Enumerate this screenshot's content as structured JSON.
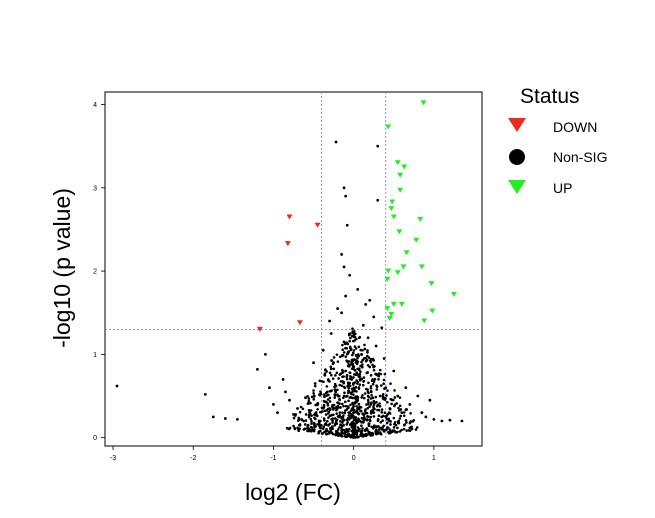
{
  "chart_data": {
    "type": "scatter",
    "xlabel": "log2 (FC)",
    "ylabel": "-log10 (p value)",
    "xlim": [
      -3.1,
      1.6
    ],
    "ylim": [
      -0.1,
      4.15
    ],
    "x_ticks": [
      -3,
      -2,
      -1,
      0,
      1
    ],
    "y_ticks": [
      0,
      1,
      2,
      3,
      4
    ],
    "grid": false,
    "threshold_lines": {
      "x": [
        -0.4,
        0.4
      ],
      "y": [
        1.3
      ]
    },
    "threshold_line_color": "#7777ee",
    "legend": {
      "title": "Status",
      "placement": "right",
      "entries": [
        {
          "label": "DOWN",
          "color": "#ee2a1c",
          "marker": "triangle-down"
        },
        {
          "label": "Non-SIG",
          "color": "#000000",
          "marker": "circle"
        },
        {
          "label": "UP",
          "color": "#22ee22",
          "marker": "triangle-down"
        }
      ]
    },
    "series": [
      {
        "name": "DOWN",
        "color": "#ee2a1c",
        "marker": "triangle-down",
        "points": [
          [
            -0.8,
            2.65
          ],
          [
            -0.45,
            2.55
          ],
          [
            -0.82,
            2.33
          ],
          [
            -0.67,
            1.38
          ],
          [
            -1.17,
            1.3
          ]
        ]
      },
      {
        "name": "Non-SIG",
        "color": "#000000",
        "marker": "circle",
        "points": [
          [
            -2.95,
            0.62
          ],
          [
            -1.85,
            0.52
          ],
          [
            -1.75,
            0.25
          ],
          [
            -1.6,
            0.23
          ],
          [
            -1.45,
            0.22
          ],
          [
            -1.2,
            0.82
          ],
          [
            -1.1,
            1.0
          ],
          [
            -1.05,
            0.6
          ],
          [
            -1.0,
            0.4
          ],
          [
            -0.95,
            0.3
          ],
          [
            -0.88,
            0.7
          ],
          [
            -0.85,
            0.55
          ],
          [
            -0.8,
            0.45
          ],
          [
            -0.75,
            0.28
          ],
          [
            -0.7,
            0.35
          ],
          [
            -0.65,
            0.22
          ],
          [
            -0.6,
            0.48
          ],
          [
            -0.55,
            0.3
          ],
          [
            -0.5,
            0.9
          ],
          [
            -0.48,
            0.65
          ],
          [
            -0.45,
            0.4
          ],
          [
            -0.42,
            0.2
          ],
          [
            -0.38,
            1.05
          ],
          [
            -0.36,
            0.75
          ],
          [
            -0.33,
            0.55
          ],
          [
            -0.3,
            0.35
          ],
          [
            -0.28,
            1.25
          ],
          [
            -0.25,
            0.9
          ],
          [
            -0.22,
            0.62
          ],
          [
            -0.2,
            0.42
          ],
          [
            -0.18,
            0.25
          ],
          [
            -0.15,
            1.5
          ],
          [
            -0.12,
            1.15
          ],
          [
            -0.1,
            0.8
          ],
          [
            -0.08,
            0.5
          ],
          [
            -0.05,
            0.3
          ],
          [
            -0.03,
            0.15
          ],
          [
            0.0,
            0.08
          ],
          [
            0.03,
            0.2
          ],
          [
            0.05,
            0.45
          ],
          [
            0.08,
            0.7
          ],
          [
            0.1,
            1.0
          ],
          [
            0.12,
            1.35
          ],
          [
            0.15,
            1.6
          ],
          [
            0.18,
            1.2
          ],
          [
            0.2,
            0.85
          ],
          [
            0.22,
            0.55
          ],
          [
            0.25,
            0.3
          ],
          [
            0.28,
            1.1
          ],
          [
            0.3,
            0.75
          ],
          [
            0.33,
            0.5
          ],
          [
            0.35,
            0.25
          ],
          [
            0.38,
            0.95
          ],
          [
            0.4,
            0.6
          ],
          [
            0.45,
            0.35
          ],
          [
            0.5,
            0.8
          ],
          [
            0.55,
            0.5
          ],
          [
            0.6,
            0.3
          ],
          [
            0.65,
            0.6
          ],
          [
            0.7,
            0.4
          ],
          [
            0.8,
            0.5
          ],
          [
            0.85,
            0.3
          ],
          [
            0.9,
            0.25
          ],
          [
            1.0,
            0.22
          ],
          [
            1.2,
            0.21
          ],
          [
            1.35,
            0.2
          ],
          [
            1.1,
            0.2
          ],
          [
            0.95,
            0.45
          ],
          [
            -0.22,
            3.55
          ],
          [
            -0.12,
            3.0
          ],
          [
            -0.1,
            2.9
          ],
          [
            -0.08,
            2.55
          ],
          [
            -0.15,
            2.2
          ],
          [
            -0.12,
            2.05
          ],
          [
            0.3,
            3.5
          ],
          [
            0.3,
            2.85
          ],
          [
            -0.05,
            1.95
          ],
          [
            0.05,
            1.78
          ],
          [
            0.2,
            1.65
          ],
          [
            -0.2,
            1.55
          ],
          [
            0.25,
            1.45
          ],
          [
            -0.3,
            1.4
          ],
          [
            0.35,
            1.32
          ],
          [
            -0.1,
            1.7
          ]
        ]
      },
      {
        "name": "UP",
        "color": "#22ee22",
        "marker": "triangle-down",
        "points": [
          [
            0.87,
            4.02
          ],
          [
            0.43,
            3.73
          ],
          [
            0.55,
            3.3
          ],
          [
            0.63,
            3.25
          ],
          [
            0.58,
            3.15
          ],
          [
            0.58,
            2.97
          ],
          [
            0.48,
            2.83
          ],
          [
            0.47,
            2.75
          ],
          [
            0.5,
            2.65
          ],
          [
            0.83,
            2.62
          ],
          [
            0.57,
            2.47
          ],
          [
            0.78,
            2.37
          ],
          [
            0.66,
            2.22
          ],
          [
            0.62,
            2.05
          ],
          [
            0.55,
            1.98
          ],
          [
            0.43,
            2.0
          ],
          [
            0.42,
            1.9
          ],
          [
            0.85,
            2.05
          ],
          [
            0.97,
            1.85
          ],
          [
            1.25,
            1.72
          ],
          [
            0.5,
            1.6
          ],
          [
            0.6,
            1.6
          ],
          [
            0.98,
            1.52
          ],
          [
            0.47,
            1.48
          ],
          [
            0.45,
            1.43
          ],
          [
            0.88,
            1.4
          ],
          [
            0.42,
            1.55
          ]
        ]
      }
    ]
  }
}
